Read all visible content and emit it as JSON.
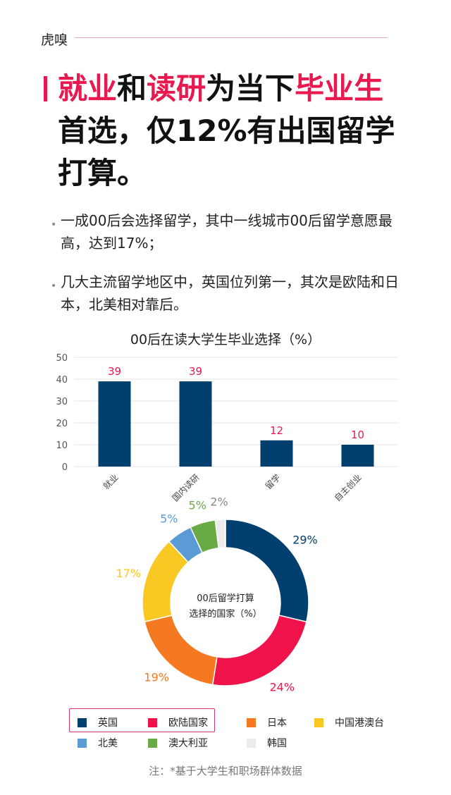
{
  "brand": "虎嗅",
  "title": {
    "parts": [
      {
        "t": "就业",
        "red": true
      },
      {
        "t": "和",
        "red": false
      },
      {
        "t": "读研",
        "red": true
      },
      {
        "t": "为当下",
        "red": false
      },
      {
        "t": "毕业生",
        "red": true
      },
      {
        "t": "首选，仅12%有出国留学打算。",
        "red": false
      }
    ]
  },
  "bullets": [
    "一成00后会选择留学，其中一线城市00后留学意愿最高，达到17%；",
    "几大主流留学地区中，英国位列第一，其次是欧陆和日本，北美相对靠后。"
  ],
  "chart_data": [
    {
      "type": "bar",
      "title": "00后在读大学生毕业选择（%）",
      "categories": [
        "就业",
        "国内读研",
        "留学",
        "自主创业"
      ],
      "values": [
        39,
        39,
        12,
        10
      ],
      "ylim": [
        0,
        50
      ],
      "yticks": [
        0,
        10,
        20,
        30,
        40,
        50
      ],
      "grid": true,
      "bar_color": "#003f6e",
      "label_color": "#e8194f"
    },
    {
      "type": "pie",
      "title": "00后留学打算选择的国家（%）",
      "title_lines": [
        "00后留学打算",
        "选择的国家（%）"
      ],
      "donut": true,
      "categories": [
        "英国",
        "欧陆国家",
        "日本",
        "中国港澳台",
        "北美",
        "澳大利亚",
        "韩国"
      ],
      "values": [
        29,
        24,
        19,
        17,
        5,
        5,
        2
      ],
      "labels": [
        "29%",
        "24%",
        "19%",
        "17%",
        "5%",
        "5%",
        "2%"
      ],
      "colors": [
        "#003f6e",
        "#f0124a",
        "#f47920",
        "#f9c823",
        "#5b9bd5",
        "#6aaa44",
        "#ececec"
      ],
      "legend_placement": "bottom"
    }
  ],
  "note": "注：*基于大学生和职场群体数据"
}
